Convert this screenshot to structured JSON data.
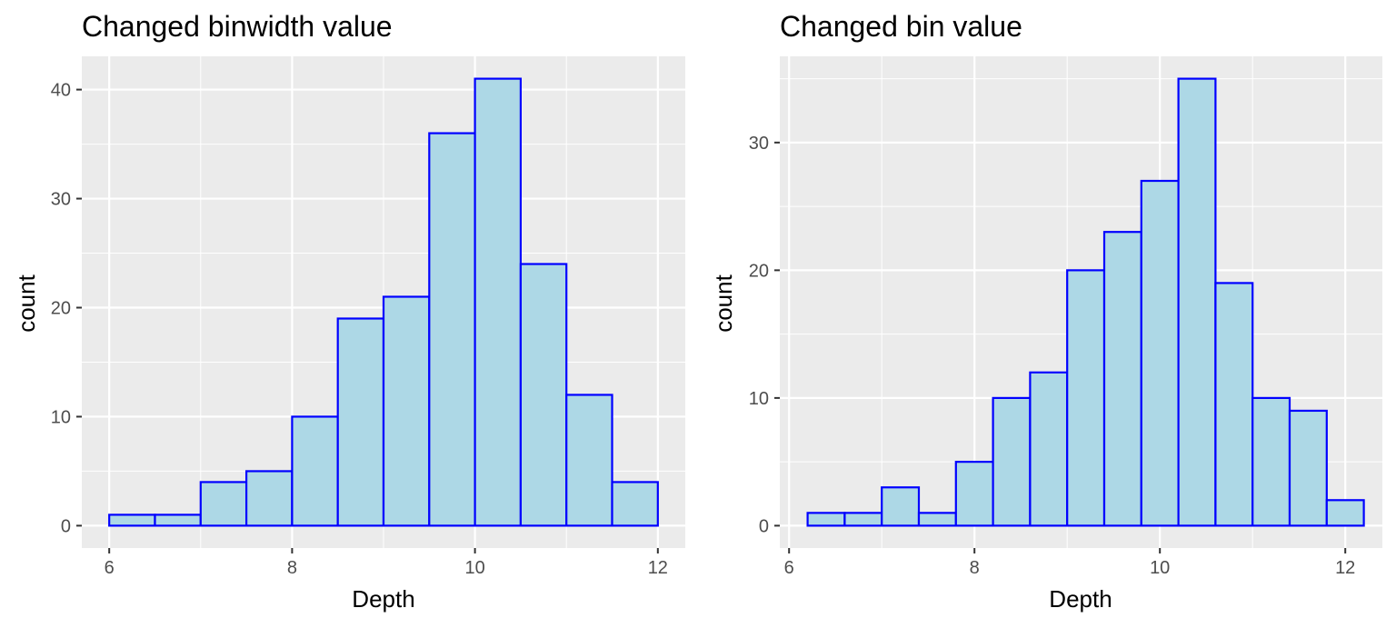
{
  "chart_data": [
    {
      "type": "bar",
      "title": "Changed binwidth value",
      "xlabel": "Depth",
      "ylabel": "count",
      "xlim": [
        5.7,
        12.3
      ],
      "ylim": [
        -2.05,
        43.05
      ],
      "x_ticks": [
        6,
        8,
        10,
        12
      ],
      "x_tick_labels": [
        "6",
        "8",
        "10",
        "12"
      ],
      "y_ticks": [
        0,
        10,
        20,
        30,
        40
      ],
      "y_tick_labels": [
        "0",
        "10",
        "20",
        "30",
        "40"
      ],
      "bins": [
        {
          "x0": 6.0,
          "x1": 6.5,
          "count": 1
        },
        {
          "x0": 6.5,
          "x1": 7.0,
          "count": 1
        },
        {
          "x0": 7.0,
          "x1": 7.5,
          "count": 4
        },
        {
          "x0": 7.5,
          "x1": 8.0,
          "count": 5
        },
        {
          "x0": 8.0,
          "x1": 8.5,
          "count": 10
        },
        {
          "x0": 8.5,
          "x1": 9.0,
          "count": 19
        },
        {
          "x0": 9.0,
          "x1": 9.5,
          "count": 21
        },
        {
          "x0": 9.5,
          "x1": 10.0,
          "count": 36
        },
        {
          "x0": 10.0,
          "x1": 10.5,
          "count": 41
        },
        {
          "x0": 10.5,
          "x1": 11.0,
          "count": 24
        },
        {
          "x0": 11.0,
          "x1": 11.5,
          "count": 12
        },
        {
          "x0": 11.5,
          "x1": 12.0,
          "count": 4
        }
      ],
      "grid": true,
      "bar_fill": "#add8e6",
      "bar_stroke": "#0000ff",
      "panel_background": "#ebebeb",
      "grid_color": "#ffffff"
    },
    {
      "type": "bar",
      "title": "Changed bin value",
      "xlabel": "Depth",
      "ylabel": "count",
      "xlim": [
        5.9,
        12.4
      ],
      "ylim": [
        -1.75,
        36.75
      ],
      "x_ticks": [
        6,
        8,
        10,
        12
      ],
      "x_tick_labels": [
        "6",
        "8",
        "10",
        "12"
      ],
      "y_ticks": [
        0,
        10,
        20,
        30
      ],
      "y_tick_labels": [
        "0",
        "10",
        "20",
        "30"
      ],
      "bins": [
        {
          "x0": 6.2,
          "x1": 6.6,
          "count": 1
        },
        {
          "x0": 6.6,
          "x1": 7.0,
          "count": 1
        },
        {
          "x0": 7.0,
          "x1": 7.4,
          "count": 3
        },
        {
          "x0": 7.4,
          "x1": 7.8,
          "count": 1
        },
        {
          "x0": 7.8,
          "x1": 8.2,
          "count": 5
        },
        {
          "x0": 8.2,
          "x1": 8.6,
          "count": 10
        },
        {
          "x0": 8.6,
          "x1": 9.0,
          "count": 12
        },
        {
          "x0": 9.0,
          "x1": 9.4,
          "count": 20
        },
        {
          "x0": 9.4,
          "x1": 9.8,
          "count": 23
        },
        {
          "x0": 9.8,
          "x1": 10.2,
          "count": 27
        },
        {
          "x0": 10.2,
          "x1": 10.6,
          "count": 35
        },
        {
          "x0": 10.6,
          "x1": 11.0,
          "count": 19
        },
        {
          "x0": 11.0,
          "x1": 11.4,
          "count": 10
        },
        {
          "x0": 11.4,
          "x1": 11.8,
          "count": 9
        },
        {
          "x0": 11.8,
          "x1": 12.2,
          "count": 2
        }
      ],
      "grid": true,
      "bar_fill": "#add8e6",
      "bar_stroke": "#0000ff",
      "panel_background": "#ebebeb",
      "grid_color": "#ffffff"
    }
  ]
}
